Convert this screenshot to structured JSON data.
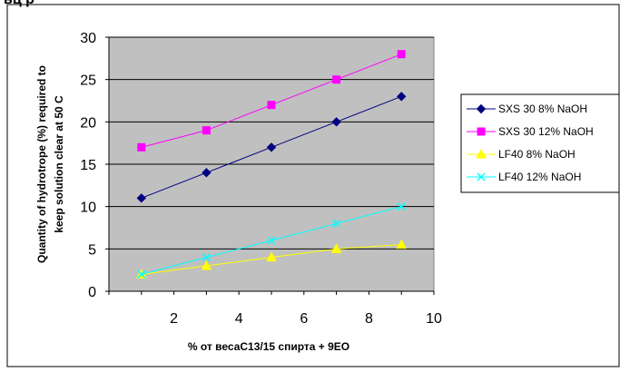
{
  "header": {
    "text": "ьц р"
  },
  "chart_data": {
    "type": "line",
    "title": "",
    "xlabel": "% от весаC13/15 спирта + 9EO",
    "ylabel_line1": "Quantity of hydrotrope (%) required to",
    "ylabel_line2": "keep solution clear at 50 C",
    "xlim": [
      0,
      10
    ],
    "ylim": [
      0,
      30
    ],
    "x_ticks": [
      2,
      4,
      6,
      8,
      10
    ],
    "y_ticks": [
      0,
      5,
      10,
      15,
      20,
      25,
      30
    ],
    "plot_background": "#c0c0c0",
    "grid": "horizontal",
    "legend_position": "right",
    "series": [
      {
        "name": "SXS 30 8% NaOH",
        "color": "#000080",
        "marker": "diamond",
        "x": [
          1,
          3,
          5,
          7,
          9
        ],
        "y": [
          11,
          14,
          17,
          20,
          23
        ]
      },
      {
        "name": "SXS 30 12% NaOH",
        "color": "#ff00ff",
        "marker": "square",
        "x": [
          1,
          3,
          5,
          7,
          9
        ],
        "y": [
          17,
          19,
          22,
          25,
          28
        ]
      },
      {
        "name": "LF40 8% NaOH",
        "color": "#ffff00",
        "marker": "triangle",
        "x": [
          1,
          3,
          5,
          7,
          9
        ],
        "y": [
          2,
          3,
          4,
          5,
          5.5
        ]
      },
      {
        "name": "LF40 12% NaOH",
        "color": "#00ffff",
        "marker": "x",
        "x": [
          1,
          3,
          5,
          7,
          9
        ],
        "y": [
          2,
          4,
          6,
          8,
          10
        ]
      }
    ]
  }
}
